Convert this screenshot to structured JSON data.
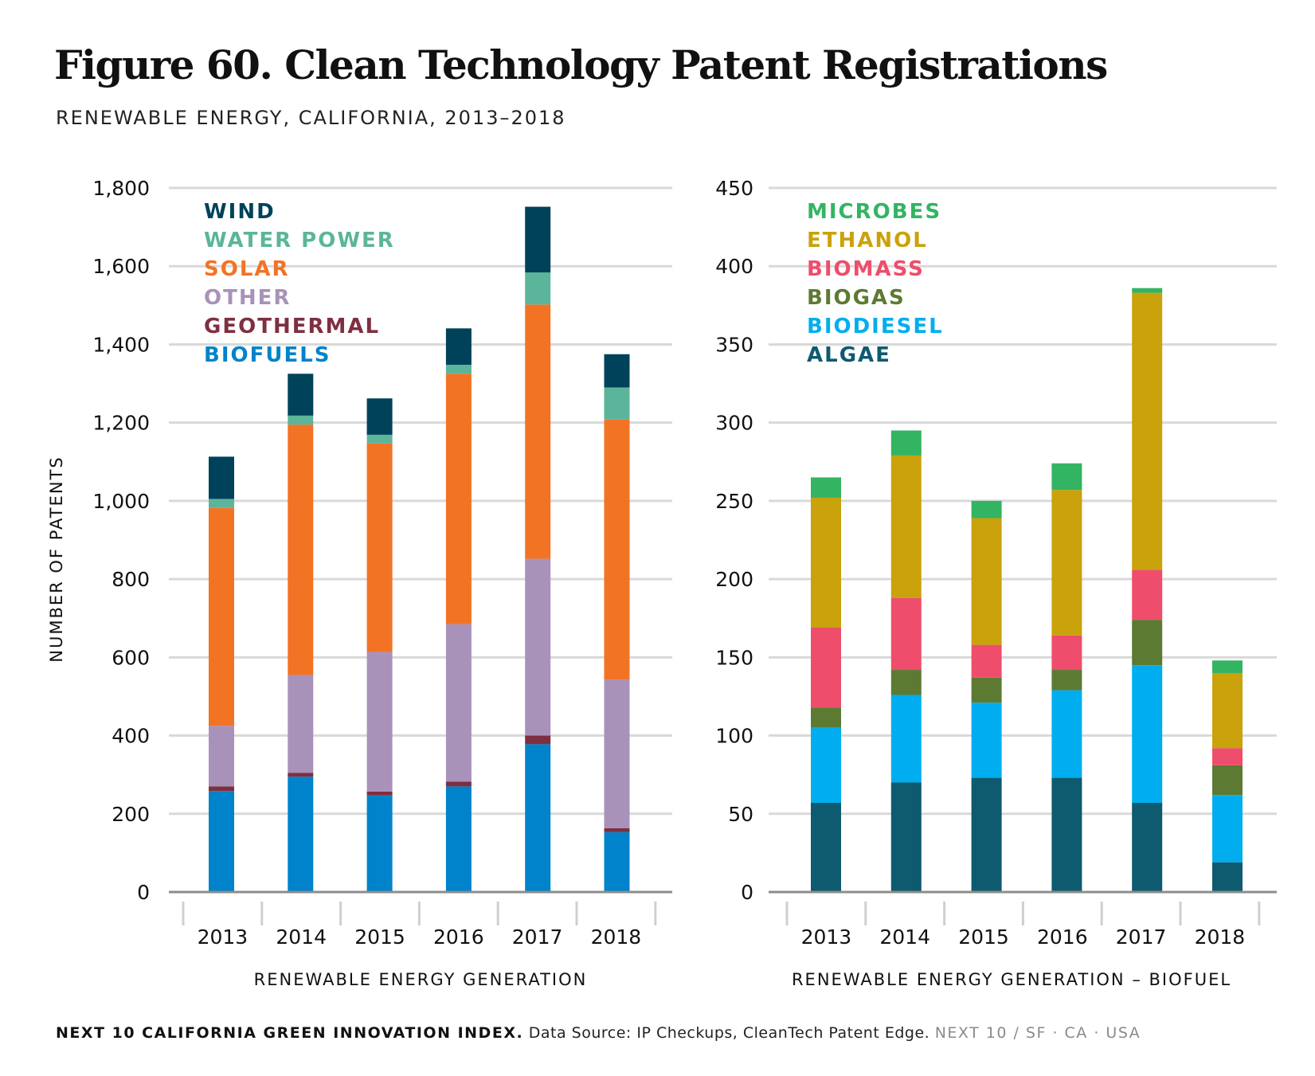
{
  "title": "Figure 60. Clean Technology Patent Registrations",
  "subtitle": "RENEWABLE ENERGY, CALIFORNIA, 2013–2018",
  "footer": {
    "org": "NEXT 10 CALIFORNIA GREEN INNOVATION INDEX.",
    "source": "Data Source: IP Checkups, CleanTech Patent Edge.",
    "brand": "NEXT 10  /  SF · CA · USA"
  },
  "chart_data": [
    {
      "type": "bar",
      "stacked": true,
      "xlabel": "RENEWABLE ENERGY GENERATION",
      "ylabel": "NUMBER OF PATENTS",
      "ylim": [
        0,
        1800
      ],
      "yticks": [
        0,
        200,
        400,
        600,
        800,
        1000,
        1200,
        1400,
        1600,
        1800
      ],
      "ytick_labels": [
        "0",
        "200",
        "400",
        "600",
        "800",
        "1,000",
        "1,200",
        "1,400",
        "1,600",
        "1,800"
      ],
      "grid": true,
      "legend_position": "top-left",
      "categories": [
        "2013",
        "2014",
        "2015",
        "2016",
        "2017",
        "2018"
      ],
      "series": [
        {
          "name": "BIOFUELS",
          "color": "#0083CA",
          "values": [
            258,
            295,
            247,
            270,
            378,
            153
          ]
        },
        {
          "name": "GEOTHERMAL",
          "color": "#7F2F40",
          "values": [
            12,
            10,
            10,
            12,
            22,
            10
          ]
        },
        {
          "name": "OTHER",
          "color": "#A892BA",
          "values": [
            155,
            250,
            357,
            403,
            452,
            380
          ]
        },
        {
          "name": "SOLAR",
          "color": "#F37324",
          "values": [
            557,
            640,
            533,
            640,
            650,
            665
          ]
        },
        {
          "name": "WATER POWER",
          "color": "#5BB59A",
          "values": [
            23,
            23,
            22,
            23,
            82,
            82
          ]
        },
        {
          "name": "WIND",
          "color": "#00425A",
          "values": [
            108,
            107,
            93,
            93,
            168,
            85
          ]
        }
      ],
      "legend_order": [
        "WIND",
        "WATER POWER",
        "SOLAR",
        "OTHER",
        "GEOTHERMAL",
        "BIOFUELS"
      ]
    },
    {
      "type": "bar",
      "stacked": true,
      "xlabel": "RENEWABLE ENERGY GENERATION – BIOFUEL",
      "ylabel": "",
      "ylim": [
        0,
        450
      ],
      "yticks": [
        0,
        50,
        100,
        150,
        200,
        250,
        300,
        350,
        400,
        450
      ],
      "ytick_labels": [
        "0",
        "50",
        "100",
        "150",
        "200",
        "250",
        "300",
        "350",
        "400",
        "450"
      ],
      "grid": true,
      "legend_position": "top-left",
      "categories": [
        "2013",
        "2014",
        "2015",
        "2016",
        "2017",
        "2018"
      ],
      "series": [
        {
          "name": "ALGAE",
          "color": "#0E5A6F",
          "values": [
            57,
            70,
            73,
            73,
            57,
            19
          ]
        },
        {
          "name": "BIODIESEL",
          "color": "#00AEEF",
          "values": [
            48,
            56,
            48,
            56,
            88,
            43
          ]
        },
        {
          "name": "BIOGAS",
          "color": "#5D7A33",
          "values": [
            13,
            16,
            16,
            13,
            29,
            19
          ]
        },
        {
          "name": "BIOMASS",
          "color": "#EE4E6B",
          "values": [
            51,
            46,
            21,
            22,
            32,
            11
          ]
        },
        {
          "name": "ETHANOL",
          "color": "#C9A20C",
          "values": [
            83,
            91,
            81,
            93,
            177,
            48
          ]
        },
        {
          "name": "MICROBES",
          "color": "#33B462",
          "values": [
            13,
            16,
            11,
            17,
            3,
            8
          ]
        }
      ],
      "legend_order": [
        "MICROBES",
        "ETHANOL",
        "BIOMASS",
        "BIOGAS",
        "BIODIESEL",
        "ALGAE"
      ]
    }
  ]
}
